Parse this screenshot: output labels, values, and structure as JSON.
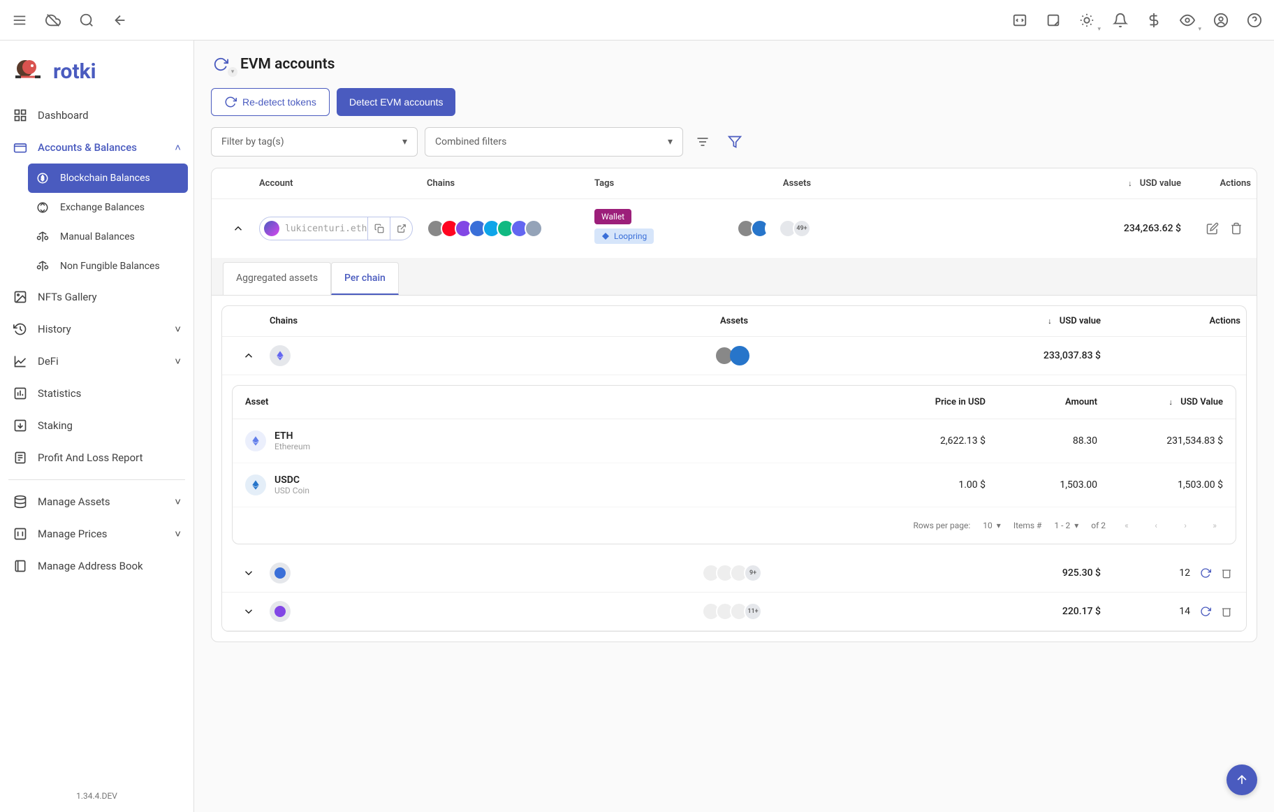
{
  "app": {
    "name": "rotki",
    "version": "1.34.4.DEV"
  },
  "topbar_icons": [
    "menu",
    "cloud-off",
    "search",
    "back",
    "code",
    "note",
    "brightness",
    "bell",
    "dollar",
    "eye",
    "account",
    "help"
  ],
  "nav": {
    "items": [
      {
        "id": "dashboard",
        "label": "Dashboard",
        "icon": "dashboard"
      },
      {
        "id": "accounts",
        "label": "Accounts & Balances",
        "icon": "wallet",
        "expanded": true,
        "children": [
          {
            "id": "blockchain",
            "label": "Blockchain Balances",
            "icon": "coin",
            "active": true
          },
          {
            "id": "exchange",
            "label": "Exchange Balances",
            "icon": "swap"
          },
          {
            "id": "manual",
            "label": "Manual Balances",
            "icon": "scale"
          },
          {
            "id": "nft-bal",
            "label": "Non Fungible Balances",
            "icon": "scale"
          }
        ]
      },
      {
        "id": "nfts",
        "label": "NFTs Gallery",
        "icon": "image"
      },
      {
        "id": "history",
        "label": "History",
        "icon": "history",
        "hasChildren": true
      },
      {
        "id": "defi",
        "label": "DeFi",
        "icon": "chart",
        "hasChildren": true
      },
      {
        "id": "statistics",
        "label": "Statistics",
        "icon": "bars"
      },
      {
        "id": "staking",
        "label": "Staking",
        "icon": "inbox"
      },
      {
        "id": "pnl",
        "label": "Profit And Loss Report",
        "icon": "report"
      }
    ],
    "manage": [
      {
        "id": "massets",
        "label": "Manage Assets",
        "icon": "db",
        "hasChildren": true
      },
      {
        "id": "mprices",
        "label": "Manage Prices",
        "icon": "price",
        "hasChildren": true
      },
      {
        "id": "maddress",
        "label": "Manage Address Book",
        "icon": "book"
      }
    ]
  },
  "page": {
    "title": "EVM accounts",
    "btn_redetect": "Re-detect tokens",
    "btn_detect": "Detect EVM accounts",
    "filter_tags": "Filter by tag(s)",
    "filter_combined": "Combined filters"
  },
  "table": {
    "cols": {
      "account": "Account",
      "chains": "Chains",
      "tags": "Tags",
      "assets": "Assets",
      "usd": "USD value",
      "actions": "Actions"
    },
    "row": {
      "account_name": "lukicenturi.eth",
      "chain_count": 9,
      "chain_colors": [
        "#888888",
        "#ff0420",
        "#8247e5",
        "#3a6fd8",
        "#0ea5e9",
        "#10b981",
        "#6366f1",
        "#94a3b8"
      ],
      "tags": [
        {
          "label": "Wallet",
          "kind": "wallet"
        },
        {
          "label": "Loopring",
          "kind": "loopring"
        }
      ],
      "asset_more": "49+",
      "asset_colors": [
        "#888888",
        "#2775ca",
        "#ffffff",
        "#e5e7eb"
      ],
      "usd": "234,263.62 $"
    }
  },
  "subtabs": {
    "agg": "Aggregated assets",
    "per": "Per chain"
  },
  "perchain": {
    "cols": {
      "chains": "Chains",
      "assets": "Assets",
      "usd": "USD value",
      "actions": "Actions"
    },
    "expanded_row": {
      "chain_color": "#6366f1",
      "asset_colors": [
        "#888888",
        "#2775ca"
      ],
      "usd": "233,037.83 $"
    },
    "nested": {
      "cols": {
        "asset": "Asset",
        "price": "Price in USD",
        "amount": "Amount",
        "usdval": "USD Value"
      },
      "rows": [
        {
          "symbol": "ETH",
          "name": "Ethereum",
          "price": "2,622.13 $",
          "amount": "88.30",
          "usd": "231,534.83 $",
          "color": "#627eea"
        },
        {
          "symbol": "USDC",
          "name": "USD Coin",
          "price": "1.00 $",
          "amount": "1,503.00",
          "usd": "1,503.00 $",
          "color": "#2775ca"
        }
      ],
      "pagination": {
        "rows_label": "Rows per page:",
        "rows_value": "10",
        "items_label": "Items #",
        "range": "1 - 2",
        "of_label": "of 2"
      }
    },
    "collapsed": [
      {
        "chain_color": "#3a6fd8",
        "extra": "9+",
        "usd": "925.30 $",
        "count": "12"
      },
      {
        "chain_color": "#8247e5",
        "extra": "11+",
        "usd": "220.17 $",
        "count": "14"
      }
    ]
  },
  "colors": {
    "primary": "#4a5bbf",
    "accent_wallet": "#9c1f7a",
    "accent_loopring_bg": "#d6e5fa",
    "accent_loopring_fg": "#3a6fd8"
  }
}
